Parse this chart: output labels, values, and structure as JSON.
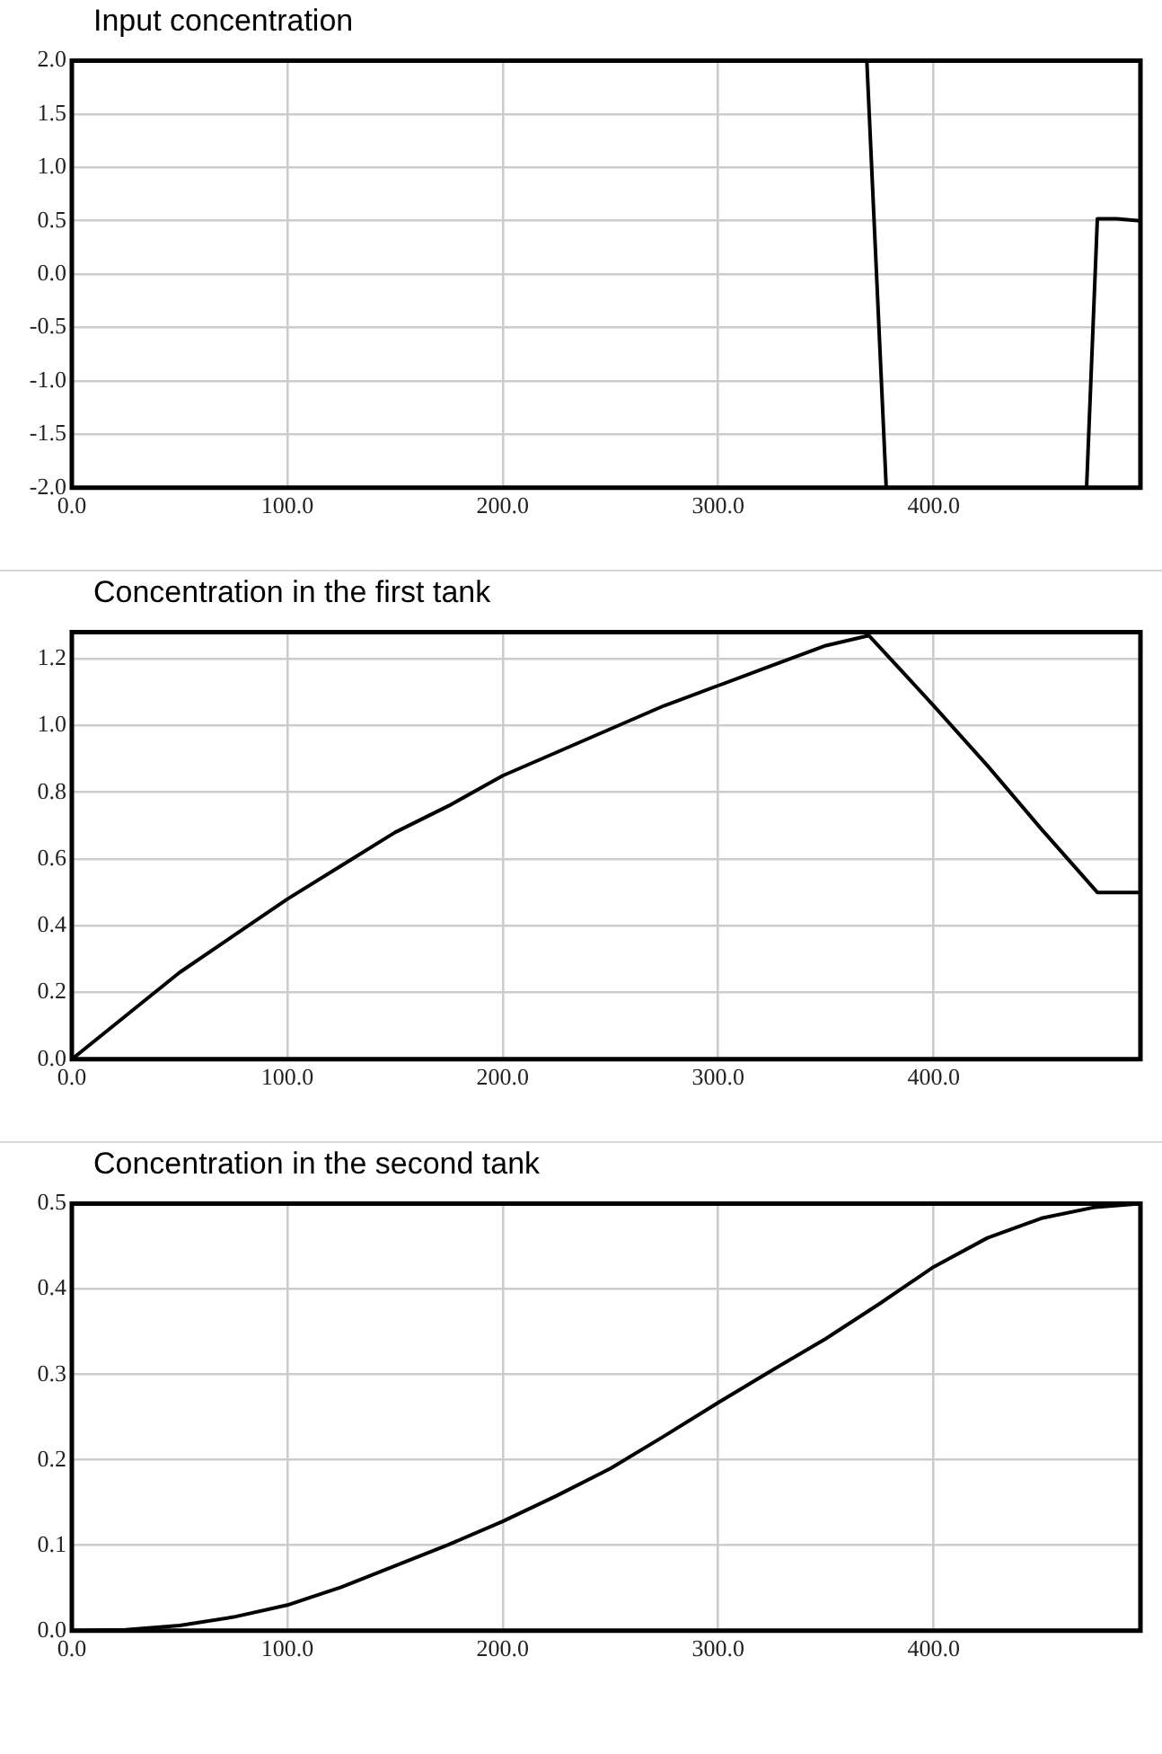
{
  "chart_data": [
    {
      "type": "line",
      "title": "Input concentration",
      "color": "#000000",
      "grid": true,
      "x": [
        0,
        369,
        378,
        420,
        471,
        476,
        485,
        496
      ],
      "values": [
        2.0,
        2.0,
        -2.0,
        null,
        -2.0,
        0.52,
        0.52,
        0.5
      ],
      "xlim": [
        0,
        496
      ],
      "xticks": [
        {
          "value": 0,
          "label": "0.0"
        },
        {
          "value": 100,
          "label": "100.0"
        },
        {
          "value": 200,
          "label": "200.0"
        },
        {
          "value": 300,
          "label": "300.0"
        },
        {
          "value": 400,
          "label": "400.0"
        }
      ],
      "ylim": [
        -2,
        2
      ],
      "yticks": [
        {
          "value": -2,
          "label": "-2.0"
        },
        {
          "value": -1.5,
          "label": "-1.5"
        },
        {
          "value": -1,
          "label": "-1.0"
        },
        {
          "value": -0.5,
          "label": "-0.5"
        },
        {
          "value": 0,
          "label": "0.0"
        },
        {
          "value": 0.5,
          "label": "0.5"
        },
        {
          "value": 1,
          "label": "1.0"
        },
        {
          "value": 1.5,
          "label": "1.5"
        },
        {
          "value": 2,
          "label": "2.0"
        }
      ]
    },
    {
      "type": "line",
      "title": "Concentration in the first tank",
      "color": "#000000",
      "grid": true,
      "x": [
        0,
        25,
        50,
        75,
        100,
        125,
        150,
        175,
        200,
        225,
        250,
        275,
        300,
        325,
        350,
        370,
        400,
        425,
        450,
        476,
        496
      ],
      "values": [
        0,
        0.13,
        0.26,
        0.37,
        0.48,
        0.58,
        0.68,
        0.76,
        0.85,
        0.92,
        0.99,
        1.06,
        1.12,
        1.18,
        1.24,
        1.27,
        1.06,
        0.88,
        0.69,
        0.5,
        0.5
      ],
      "xlim": [
        0,
        496
      ],
      "xticks": [
        {
          "value": 0,
          "label": "0.0"
        },
        {
          "value": 100,
          "label": "100.0"
        },
        {
          "value": 200,
          "label": "200.0"
        },
        {
          "value": 300,
          "label": "300.0"
        },
        {
          "value": 400,
          "label": "400.0"
        }
      ],
      "ylim": [
        0,
        1.28
      ],
      "yticks": [
        {
          "value": 0,
          "label": "0.0"
        },
        {
          "value": 0.2,
          "label": "0.2"
        },
        {
          "value": 0.4,
          "label": "0.4"
        },
        {
          "value": 0.6,
          "label": "0.6"
        },
        {
          "value": 0.8,
          "label": "0.8"
        },
        {
          "value": 1,
          "label": "1.0"
        },
        {
          "value": 1.2,
          "label": "1.2"
        }
      ]
    },
    {
      "type": "line",
      "title": "Concentration in the second tank",
      "color": "#000000",
      "grid": true,
      "x": [
        0,
        25,
        50,
        75,
        100,
        125,
        150,
        175,
        200,
        225,
        250,
        275,
        300,
        325,
        350,
        375,
        400,
        425,
        450,
        475,
        496
      ],
      "values": [
        0,
        0.001,
        0.006,
        0.016,
        0.03,
        0.051,
        0.076,
        0.101,
        0.128,
        0.158,
        0.19,
        0.228,
        0.267,
        0.305,
        0.342,
        0.383,
        0.426,
        0.46,
        0.483,
        0.496,
        0.5
      ],
      "xlim": [
        0,
        496
      ],
      "xticks": [
        {
          "value": 0,
          "label": "0.0"
        },
        {
          "value": 100,
          "label": "100.0"
        },
        {
          "value": 200,
          "label": "200.0"
        },
        {
          "value": 300,
          "label": "300.0"
        },
        {
          "value": 400,
          "label": "400.0"
        }
      ],
      "ylim": [
        0,
        0.5
      ],
      "yticks": [
        {
          "value": 0,
          "label": "0.0"
        },
        {
          "value": 0.1,
          "label": "0.1"
        },
        {
          "value": 0.2,
          "label": "0.2"
        },
        {
          "value": 0.3,
          "label": "0.3"
        },
        {
          "value": 0.4,
          "label": "0.4"
        },
        {
          "value": 0.5,
          "label": "0.5"
        }
      ]
    }
  ]
}
